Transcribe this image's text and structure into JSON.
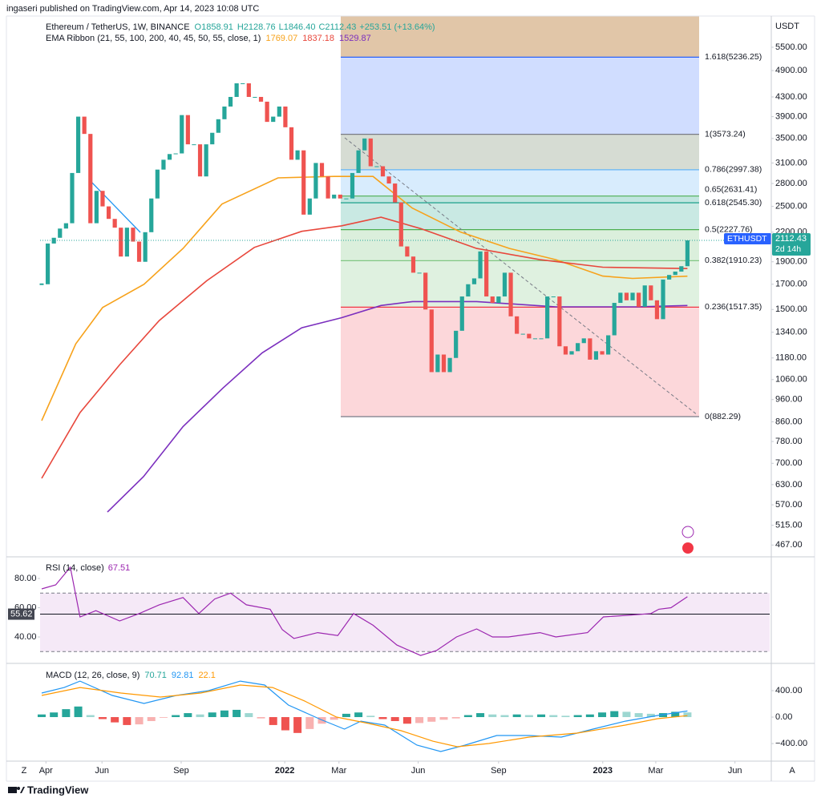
{
  "chart_data": [
    {
      "type": "candlestick",
      "publisher": "ingaseri published on TradingView.com, Apr 14, 2023 10:08 UTC",
      "title": "Ethereum / TetherUS, 1W, BINANCE",
      "ohlc": [
        "O1858.91",
        "H2128.76",
        "L1846.40",
        "C2112.43",
        "+253.51 (+13.64%)"
      ],
      "currency": "USDT",
      "log_scale": true,
      "xlim": [
        -0.26,
        119.5
      ],
      "xticks": [
        {
          "value": 0.7,
          "label": "Apr"
        },
        {
          "value": 9.9,
          "label": "Jun"
        },
        {
          "value": 22.9,
          "label": "Sep"
        },
        {
          "value": 39.9,
          "label": "2022"
        },
        {
          "value": 48.8,
          "label": "Mar"
        },
        {
          "value": 61.8,
          "label": "Jun"
        },
        {
          "value": 75,
          "label": "Sep"
        },
        {
          "value": 92.1,
          "label": "2023"
        },
        {
          "value": 100.8,
          "label": "Mar"
        },
        {
          "value": 113.8,
          "label": "Jun"
        }
      ],
      "ylim": [
        444,
        6420
      ],
      "yticks": [
        {
          "value": 5500,
          "label": "5500.00"
        },
        {
          "value": 4900,
          "label": "4900.00"
        },
        {
          "value": 4300,
          "label": "4300.00"
        },
        {
          "value": 3900,
          "label": "3900.00"
        },
        {
          "value": 3500,
          "label": "3500.00"
        },
        {
          "value": 3100,
          "label": "3100.00"
        },
        {
          "value": 2800,
          "label": "2800.00"
        },
        {
          "value": 2500,
          "label": "2500.00"
        },
        {
          "value": 2200,
          "label": "2200.00"
        },
        {
          "value": 1900,
          "label": "1900.00"
        },
        {
          "value": 1700,
          "label": "1700.00"
        },
        {
          "value": 1500,
          "label": "1500.00"
        },
        {
          "value": 1340,
          "label": "1340.00"
        },
        {
          "value": 1180,
          "label": "1180.00"
        },
        {
          "value": 1060,
          "label": "1060.00"
        },
        {
          "value": 960,
          "label": "960.00"
        },
        {
          "value": 860,
          "label": "860.00"
        },
        {
          "value": 780,
          "label": "780.00"
        },
        {
          "value": 700,
          "label": "700.00"
        },
        {
          "value": 630,
          "label": "630.00"
        },
        {
          "value": 570,
          "label": "570.00"
        },
        {
          "value": 515,
          "label": "515.00"
        },
        {
          "value": 467,
          "label": "467.00"
        }
      ],
      "up_color": "#26a69a",
      "down_color": "#ef5350",
      "series": [
        {
          "name": "ETHUSDT",
          "values": [
            1700,
            2080,
            2140,
            2240,
            2300,
            2950,
            3900,
            3580,
            2300,
            2700,
            2500,
            2350,
            2250,
            1950,
            2250,
            2100,
            1900,
            2200,
            2600,
            3000,
            3150,
            3240,
            3250,
            3930,
            3400,
            3400,
            2900,
            3400,
            3600,
            3850,
            4100,
            4300,
            4600,
            4600,
            4300,
            4300,
            4200,
            3800,
            3900,
            4100,
            3700,
            3150,
            3300,
            2400,
            2600,
            3100,
            2900,
            2600,
            2650,
            2600,
            2600,
            2950,
            3300,
            3500,
            3050,
            3050,
            2900,
            2800,
            2550,
            2050,
            1950,
            1800,
            1800,
            1500,
            1100,
            1200,
            1100,
            1180,
            1350,
            1600,
            1700,
            1750,
            2000,
            1600,
            1550,
            1600,
            1800,
            1450,
            1330,
            1330,
            1300,
            1300,
            1300,
            1600,
            1600,
            1250,
            1200,
            1220,
            1270,
            1300,
            1170,
            1220,
            1200,
            1320,
            1550,
            1630,
            1570,
            1630,
            1520,
            1690,
            1570,
            1430,
            1740,
            1780,
            1810,
            1858.91,
            2112.43
          ]
        }
      ],
      "price_tag": {
        "symbol": "ETHUSDT",
        "countdown": "2d 14h"
      },
      "ema_legend": "EMA Ribbon (21, 55, 100, 200, 40, 45, 50, 55, close, 1)",
      "ema": [
        {
          "color": "#f7a21b",
          "value": 1769.07,
          "x": [
            0,
            5.6,
            10,
            16.8,
            23.2,
            29.6,
            38.8,
            48,
            54.4,
            60.8,
            68.8,
            76.8,
            84.4,
            92.1,
            97,
            106
          ],
          "values": [
            865,
            1265,
            1515,
            1700,
            2030,
            2530,
            2880,
            2900,
            2900,
            2480,
            2200,
            2030,
            1920,
            1770,
            1750,
            1769.07
          ]
        },
        {
          "color": "#e8473c",
          "value": 1837.18,
          "x": [
            0,
            6.3,
            12.8,
            19.3,
            27.1,
            34.9,
            42.7,
            49.2,
            55.7,
            62.2,
            71.4,
            81.8,
            92.1,
            106
          ],
          "values": [
            650,
            900,
            1140,
            1420,
            1730,
            2040,
            2210,
            2270,
            2370,
            2240,
            2030,
            1920,
            1850,
            1837.18
          ]
        },
        {
          "color": "#7b2fbe",
          "value": 1529.87,
          "x": [
            10.8,
            16.7,
            23.2,
            29.7,
            36.2,
            42.7,
            49.2,
            55.7,
            60.9,
            71.4,
            84.4,
            97.4,
            106
          ],
          "values": [
            550,
            655,
            840,
            1015,
            1210,
            1370,
            1440,
            1530,
            1560,
            1560,
            1520,
            1520,
            1529.87
          ]
        }
      ],
      "fib": {
        "top_fill": "rgba(215,180,140,0.5)",
        "levels": [
          {
            "value": 0,
            "price": 882.29,
            "label": "0(882.29)",
            "color": "#787b86",
            "fill": "rgba(242,54,69,0.2)"
          },
          {
            "value": 0.236,
            "price": 1517.35,
            "label": "0.236(1517.35)",
            "color": "#f23645",
            "fill": "rgba(129,199,132,0.25)"
          },
          {
            "value": 0.382,
            "price": 1910.23,
            "label": "0.382(1910.23)",
            "color": "#81c784",
            "fill": "rgba(76,175,80,0.2)"
          },
          {
            "value": 0.5,
            "price": 2227.76,
            "label": "0.5(2227.76)",
            "color": "#4caf50",
            "fill": "rgba(8,153,129,0.22)"
          },
          {
            "value": 0.618,
            "price": 2545.3,
            "label": "0.618(2545.30)",
            "color": "#089981",
            "fill": "rgba(8,153,129,0.25)"
          },
          {
            "value": 0.65,
            "price": 2631.41,
            "label": "0.65(2631.41)",
            "color": "#4caf50",
            "fill": "rgba(100,181,246,0.25)"
          },
          {
            "value": 0.786,
            "price": 2997.38,
            "label": "0.786(2997.38)",
            "color": "#64b5f6",
            "fill": "rgba(120,140,110,0.3)"
          },
          {
            "value": 1,
            "price": 3573.24,
            "label": "1(3573.24)",
            "color": "#787b86",
            "fill": "rgba(41,98,255,0.22)"
          },
          {
            "value": 1.618,
            "price": 5236.25,
            "label": "1.618(5236.25)",
            "color": "#2962ff",
            "fill": null
          }
        ]
      }
    },
    {
      "type": "line",
      "title": "RSI (14, close)",
      "value": 67.51,
      "color": "#9c27b0",
      "marker": 55.62,
      "ylim": [
        22.5,
        93.7
      ],
      "band": [
        30,
        70
      ],
      "yticks": [
        {
          "value": 80,
          "label": "80.00"
        },
        {
          "value": 60,
          "label": "60.00"
        },
        {
          "value": 40,
          "label": "40.00"
        }
      ],
      "x": [
        0,
        2.3,
        4.7,
        6.3,
        8.9,
        12.8,
        16,
        19.3,
        23.2,
        25.8,
        28.4,
        31,
        33.6,
        37.5,
        39.5,
        41.4,
        45.3,
        48.6,
        51.2,
        54.4,
        58.3,
        62.2,
        64.8,
        68.1,
        71.4,
        74,
        76.6,
        81.8,
        84.4,
        89.6,
        92.2,
        96.1,
        100,
        101.3,
        103.3,
        106
      ],
      "values": [
        72.9,
        75.6,
        87.7,
        53.7,
        58,
        51,
        56,
        62,
        67,
        56,
        66,
        70,
        62,
        59,
        45,
        39,
        43,
        41,
        56,
        48,
        34.5,
        27.4,
        30.7,
        40,
        45.5,
        40,
        40,
        43,
        40,
        43,
        53.7,
        54.8,
        56,
        59,
        60,
        67.51
      ]
    },
    {
      "type": "macd",
      "title": "MACD (12, 26, close, 9)",
      "ylim": [
        -642,
        788
      ],
      "yticks": [
        {
          "value": 400,
          "label": "400.00"
        },
        {
          "value": 0,
          "label": "0.00"
        },
        {
          "value": -400,
          "label": "−400.00"
        }
      ],
      "histogram": {
        "up_color": "#26a69a",
        "down_color": "#ef5350",
        "x": [
          0,
          2,
          4,
          6,
          8,
          10,
          12,
          14,
          16,
          18,
          20,
          22,
          24,
          26,
          28,
          30,
          32,
          34,
          36,
          38,
          40,
          42,
          44,
          46,
          48,
          50,
          52,
          54,
          56,
          58,
          60,
          62,
          64,
          66,
          68,
          70,
          72,
          74,
          76,
          78,
          80,
          82,
          84,
          86,
          88,
          90,
          92,
          94,
          96,
          98,
          100,
          102,
          104,
          106
        ],
        "values": [
          40,
          70,
          120,
          160,
          30,
          -30,
          -80,
          -120,
          -110,
          -60,
          -10,
          30,
          60,
          40,
          70,
          100,
          110,
          60,
          -20,
          -120,
          -200,
          -240,
          -180,
          -100,
          -40,
          50,
          70,
          20,
          -30,
          -60,
          -100,
          -90,
          -70,
          -40,
          -20,
          30,
          60,
          40,
          30,
          40,
          30,
          40,
          30,
          20,
          30,
          40,
          70,
          90,
          80,
          60,
          50,
          60,
          80,
          70.71
        ]
      },
      "series": [
        {
          "color": "#2196f3",
          "x": [
            0,
            3.7,
            6.3,
            11.6,
            16.8,
            22.1,
            27.4,
            32.6,
            36.6,
            40.5,
            45.8,
            49.7,
            52.4,
            56.3,
            61.6,
            65.5,
            69.5,
            74.7,
            80,
            85.3,
            90.5,
            95.8,
            101.1,
            106
          ],
          "values": [
            364,
            448,
            545,
            327,
            206,
            327,
            400,
            545,
            485,
            182,
            -36,
            -182,
            -61,
            -121,
            -424,
            -521,
            -424,
            -279,
            -279,
            -303,
            -182,
            -61,
            24,
            92.81
          ]
        },
        {
          "color": "#ff9800",
          "x": [
            0,
            6.3,
            13,
            19.5,
            26.1,
            32.6,
            37.9,
            43.2,
            48.4,
            53.7,
            59,
            64.2,
            68.2,
            73.4,
            80,
            87.9,
            95.8,
            101.1,
            106
          ],
          "values": [
            327,
            448,
            364,
            303,
            364,
            485,
            448,
            242,
            0,
            -97,
            -206,
            -364,
            -448,
            -400,
            -303,
            -242,
            -121,
            -24,
            22.1
          ]
        }
      ]
    }
  ],
  "footer": {
    "brand": "TradingView",
    "left_button": "Z",
    "right_button": "A"
  }
}
